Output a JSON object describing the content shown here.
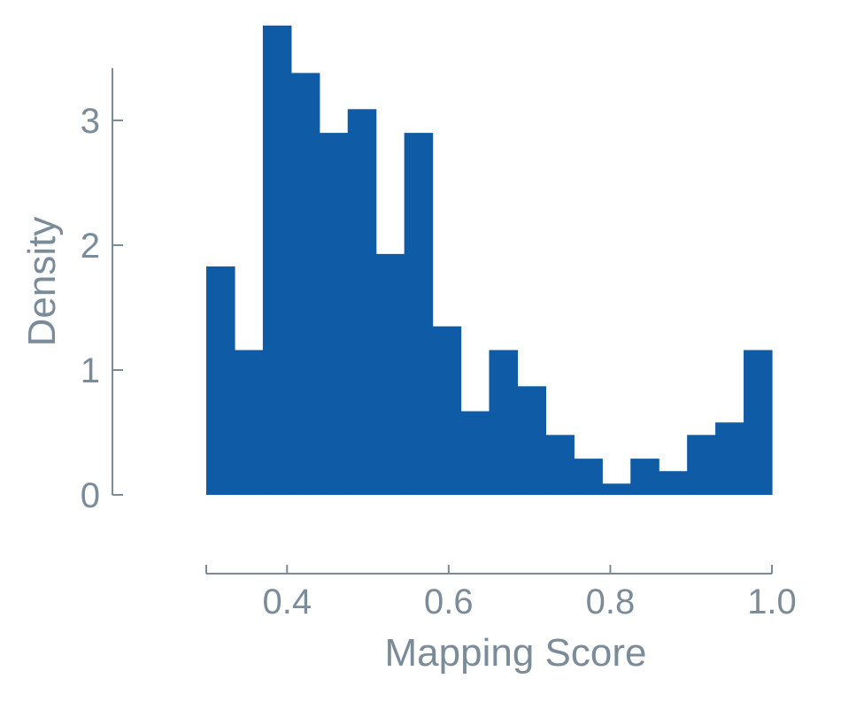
{
  "chart_data": {
    "type": "bar",
    "subtype": "histogram",
    "title": "",
    "xlabel": "Mapping Score",
    "ylabel": "Density",
    "xlim": [
      0.3,
      1.0
    ],
    "ylim": [
      -0.65,
      3.8
    ],
    "xticks": [
      0.4,
      0.6,
      0.8,
      1.0
    ],
    "xtick_labels": [
      "0.4",
      "0.6",
      "0.8",
      "1.0"
    ],
    "yticks": [
      0,
      1,
      2,
      3
    ],
    "ytick_labels": [
      "0",
      "1",
      "2",
      "3"
    ],
    "bin_edges": [
      0.3,
      0.335,
      0.37,
      0.405,
      0.44,
      0.475,
      0.51,
      0.545,
      0.58,
      0.615,
      0.65,
      0.685,
      0.72,
      0.755,
      0.79,
      0.825,
      0.86,
      0.895,
      0.93,
      0.965,
      1.0
    ],
    "values": [
      1.83,
      1.16,
      3.76,
      3.38,
      2.9,
      3.09,
      1.93,
      2.9,
      1.35,
      0.67,
      1.16,
      0.87,
      0.48,
      0.29,
      0.09,
      0.29,
      0.19,
      0.48,
      0.58,
      1.16
    ],
    "bar_color": "#0f5ba6",
    "axis_color": "#7a8c99",
    "grid": false,
    "legend": "none"
  }
}
